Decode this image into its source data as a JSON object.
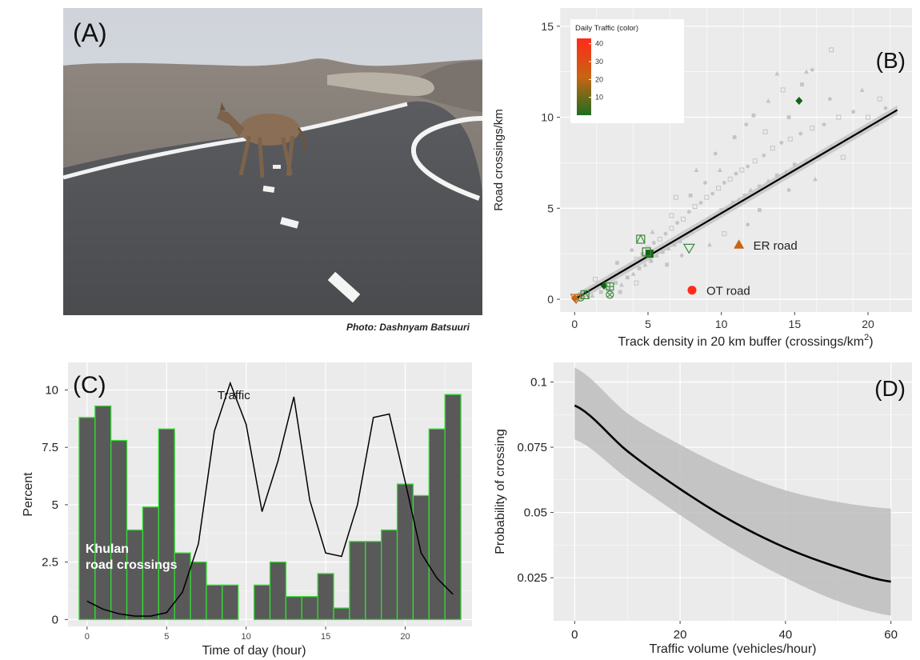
{
  "panel_a": {
    "label": "(A)",
    "photo_credit": "Photo: Dashnyam Batsuuri"
  },
  "colors": {
    "panel_bg": "#ebebeb",
    "grid": "#ffffff",
    "bar_fill": "#595959",
    "bar_outline": "#33dd33",
    "points_grey": "#c4c4c4",
    "ribbon": "#bdbdbd",
    "fit_line": "#000000",
    "high_traffic": "#ff2a1a",
    "mid_traffic": "#c86414",
    "low_traffic": "#1f6e1f",
    "low_traffic_dark": "#156215"
  },
  "chart_data": [
    {
      "type": "scatter",
      "panel_label": "(B)",
      "xlabel": "Track density in 20 km buffer (crossings/km",
      "xlabel_sup": "2",
      "xlabel_end": ")",
      "ylabel": "Road crossings/km",
      "xlim": [
        -1,
        23
      ],
      "ylim": [
        -0.7,
        16
      ],
      "xticks": [
        0,
        5,
        10,
        15,
        20
      ],
      "yticks": [
        0,
        5,
        10,
        15
      ],
      "grid": true,
      "legend": {
        "title": "Daily Traffic (color)",
        "position": "top-left",
        "ticks": [
          "40",
          "30",
          "20",
          "10"
        ],
        "range": [
          0,
          43
        ]
      },
      "fit_line": {
        "from": [
          0,
          0
        ],
        "to": [
          22,
          10.4
        ]
      },
      "highlighted": [
        {
          "label": "OT road",
          "x": 8.0,
          "y": 0.5,
          "shape": "circle",
          "color": "#ff2a1a"
        },
        {
          "label": "ER road",
          "x": 11.2,
          "y": 3.0,
          "shape": "triangle",
          "color": "#c86414"
        },
        {
          "label": "",
          "x": 15.3,
          "y": 10.9,
          "shape": "diamond",
          "color": "#156215"
        },
        {
          "label": "",
          "x": 5.1,
          "y": 2.5,
          "shape": "square",
          "color": "#156215"
        },
        {
          "label": "",
          "x": 2.0,
          "y": 0.75,
          "shape": "diamond",
          "color": "#156215"
        },
        {
          "label": "",
          "x": 4.5,
          "y": 3.3,
          "shape": "square-x",
          "color": "#3a8a3a"
        },
        {
          "label": "",
          "x": 4.9,
          "y": 2.6,
          "shape": "square-open",
          "color": "#3a8a3a"
        },
        {
          "label": "",
          "x": 7.8,
          "y": 2.8,
          "shape": "triangle-down",
          "color": "#3a8a3a"
        },
        {
          "label": "",
          "x": 2.4,
          "y": 0.7,
          "shape": "square-plus",
          "color": "#3a8a3a"
        },
        {
          "label": "",
          "x": 2.4,
          "y": 0.25,
          "shape": "circle-x",
          "color": "#3a8a3a"
        },
        {
          "label": "",
          "x": 0.7,
          "y": 0.25,
          "shape": "square-x",
          "color": "#3a8a3a"
        },
        {
          "label": "",
          "x": 0.4,
          "y": 0.1,
          "shape": "circle-open",
          "color": "#3a8a3a"
        },
        {
          "label": "",
          "x": 0.1,
          "y": 0.05,
          "shape": "triangle-down",
          "color": "#c86414"
        },
        {
          "label": "",
          "x": 0.0,
          "y": 0.05,
          "shape": "diamond",
          "color": "#c86414"
        }
      ],
      "background_points": [
        [
          0.6,
          0.3
        ],
        [
          1.0,
          0.5
        ],
        [
          1.2,
          0.2
        ],
        [
          1.5,
          0.7
        ],
        [
          1.8,
          0.4
        ],
        [
          2.1,
          1.0
        ],
        [
          2.3,
          0.6
        ],
        [
          2.6,
          1.3
        ],
        [
          2.8,
          0.9
        ],
        [
          3.0,
          1.5
        ],
        [
          3.2,
          0.8
        ],
        [
          3.4,
          1.6
        ],
        [
          3.6,
          1.2
        ],
        [
          3.8,
          1.9
        ],
        [
          4.0,
          1.4
        ],
        [
          4.2,
          2.2
        ],
        [
          4.4,
          1.7
        ],
        [
          4.6,
          2.5
        ],
        [
          4.8,
          1.9
        ],
        [
          5.0,
          2.8
        ],
        [
          5.2,
          2.1
        ],
        [
          5.4,
          3.1
        ],
        [
          5.6,
          2.4
        ],
        [
          5.8,
          3.3
        ],
        [
          6.0,
          2.6
        ],
        [
          6.2,
          3.6
        ],
        [
          6.4,
          2.8
        ],
        [
          6.6,
          3.9
        ],
        [
          6.8,
          3.0
        ],
        [
          7.0,
          4.2
        ],
        [
          7.2,
          3.2
        ],
        [
          7.4,
          4.4
        ],
        [
          7.6,
          3.5
        ],
        [
          7.8,
          4.8
        ],
        [
          8.0,
          3.7
        ],
        [
          8.2,
          5.1
        ],
        [
          8.4,
          3.9
        ],
        [
          8.6,
          5.3
        ],
        [
          8.8,
          4.2
        ],
        [
          9.0,
          5.6
        ],
        [
          9.2,
          4.4
        ],
        [
          9.4,
          5.8
        ],
        [
          9.6,
          4.6
        ],
        [
          9.8,
          6.1
        ],
        [
          10.0,
          4.9
        ],
        [
          10.2,
          6.4
        ],
        [
          10.4,
          5.0
        ],
        [
          10.6,
          6.6
        ],
        [
          10.8,
          5.3
        ],
        [
          11.0,
          6.9
        ],
        [
          11.2,
          5.5
        ],
        [
          11.4,
          7.1
        ],
        [
          11.6,
          5.7
        ],
        [
          11.8,
          7.3
        ],
        [
          12.0,
          6.0
        ],
        [
          12.3,
          7.6
        ],
        [
          12.6,
          6.2
        ],
        [
          12.9,
          7.9
        ],
        [
          13.2,
          6.5
        ],
        [
          13.5,
          8.3
        ],
        [
          13.8,
          6.8
        ],
        [
          14.1,
          8.6
        ],
        [
          14.4,
          7.0
        ],
        [
          14.7,
          8.8
        ],
        [
          15.0,
          7.4
        ],
        [
          15.4,
          9.1
        ],
        [
          15.8,
          7.6
        ],
        [
          16.2,
          9.4
        ],
        [
          16.6,
          7.9
        ],
        [
          17.0,
          9.6
        ],
        [
          17.5,
          8.4
        ],
        [
          18.0,
          10.0
        ],
        [
          18.5,
          8.8
        ],
        [
          19.0,
          10.3
        ],
        [
          19.5,
          9.2
        ],
        [
          20.0,
          10.0
        ],
        [
          20.6,
          9.6
        ],
        [
          21.2,
          10.5
        ],
        [
          21.8,
          10.3
        ],
        [
          14.2,
          11.5
        ],
        [
          15.5,
          11.8
        ],
        [
          16.2,
          12.6
        ],
        [
          13.2,
          10.9
        ],
        [
          17.5,
          13.7
        ],
        [
          12.2,
          10.1
        ],
        [
          9.6,
          8.0
        ],
        [
          8.3,
          7.1
        ],
        [
          6.9,
          5.6
        ],
        [
          10.9,
          8.9
        ],
        [
          11.7,
          9.6
        ],
        [
          13.8,
          12.4
        ],
        [
          10.2,
          3.6
        ],
        [
          12.6,
          4.9
        ],
        [
          14.6,
          6.0
        ],
        [
          16.4,
          6.6
        ],
        [
          18.3,
          7.8
        ],
        [
          6.3,
          1.9
        ],
        [
          7.3,
          2.4
        ],
        [
          9.2,
          3.0
        ],
        [
          4.2,
          0.9
        ],
        [
          3.1,
          0.4
        ],
        [
          11.8,
          4.1
        ],
        [
          15.8,
          12.5
        ],
        [
          1.4,
          1.1
        ],
        [
          2.9,
          2.0
        ],
        [
          3.9,
          2.7
        ],
        [
          5.3,
          3.7
        ],
        [
          6.6,
          4.6
        ],
        [
          7.9,
          5.7
        ],
        [
          8.9,
          6.4
        ],
        [
          9.9,
          7.1
        ],
        [
          13.0,
          9.2
        ],
        [
          14.6,
          10.0
        ],
        [
          17.4,
          11.0
        ],
        [
          19.6,
          11.5
        ],
        [
          20.8,
          11.0
        ]
      ],
      "fit": "linear"
    },
    {
      "type": "bar",
      "panel_label": "(C)",
      "xlabel": "Time of day (hour)",
      "ylabel": "Percent",
      "categories": [
        0,
        1,
        2,
        3,
        4,
        5,
        6,
        7,
        8,
        9,
        10,
        11,
        12,
        13,
        14,
        15,
        16,
        17,
        18,
        19,
        20,
        21,
        22,
        23
      ],
      "xticks": [
        0,
        5,
        10,
        15,
        20
      ],
      "yticks": [
        0,
        2.5,
        5,
        7.5,
        10
      ],
      "ytick_labels": [
        "0",
        "2.5",
        "5",
        "7.5",
        "10"
      ],
      "xlim": [
        -1.2,
        24.2
      ],
      "ylim": [
        -0.3,
        11.2
      ],
      "grid": true,
      "series": [
        {
          "name": "Khulan road crossings",
          "label_line1": "Khulan",
          "label_line2": "road crossings",
          "type": "bar",
          "values": [
            8.8,
            9.3,
            7.8,
            3.9,
            4.9,
            8.3,
            2.9,
            2.5,
            1.5,
            1.5,
            0.0,
            1.5,
            2.5,
            1.0,
            1.0,
            2.0,
            0.5,
            3.4,
            3.4,
            3.9,
            5.9,
            5.4,
            8.3,
            9.8
          ]
        },
        {
          "name": "Traffic",
          "type": "line",
          "values": [
            0.8,
            0.45,
            0.25,
            0.15,
            0.15,
            0.3,
            1.2,
            3.3,
            8.2,
            10.3,
            8.5,
            4.7,
            6.9,
            9.7,
            5.2,
            2.9,
            2.75,
            5.0,
            8.8,
            8.95,
            6.0,
            2.9,
            1.8,
            1.1
          ]
        }
      ]
    },
    {
      "type": "line",
      "panel_label": "(D)",
      "xlabel": "Traffic volume (vehicles/hour)",
      "ylabel": "Probability of crossing",
      "xlim": [
        -4,
        64
      ],
      "ylim": [
        0.0085,
        0.1075
      ],
      "xticks": [
        0,
        20,
        40,
        60
      ],
      "yticks": [
        0.025,
        0.05,
        0.075,
        0.1
      ],
      "ytick_labels": [
        "0.025",
        "0.05",
        "0.075",
        "0.1"
      ],
      "grid": true,
      "series": [
        {
          "name": "",
          "type": "line",
          "x": [
            0,
            10,
            20,
            30,
            40,
            50,
            60
          ],
          "y": [
            0.091,
            0.0735,
            0.059,
            0.0465,
            0.0365,
            0.029,
            0.0235
          ],
          "ci_lower": [
            0.078,
            0.063,
            0.049,
            0.036,
            0.025,
            0.016,
            0.0105
          ],
          "ci_upper": [
            0.1055,
            0.088,
            0.076,
            0.066,
            0.0585,
            0.054,
            0.0515
          ]
        }
      ]
    }
  ]
}
